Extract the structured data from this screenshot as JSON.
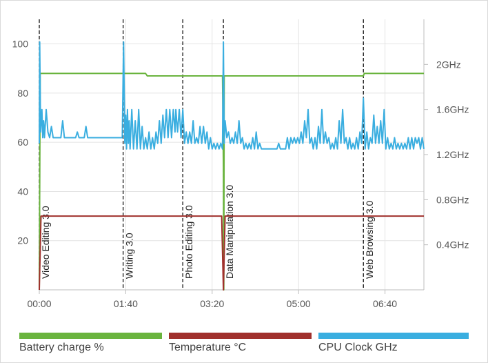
{
  "chart_data": {
    "type": "line",
    "title": "",
    "x_ticks": [
      "00:00",
      "01:40",
      "03:20",
      "05:00",
      "06:40"
    ],
    "x_range_minutes": [
      0,
      445
    ],
    "y_left_ticks": [
      20,
      40,
      60,
      80,
      100
    ],
    "y_left_range": [
      0,
      110
    ],
    "y_right_ticks": [
      "0.4GHz",
      "0.8GHz",
      "1.2GHz",
      "1.6GHz",
      "2GHz"
    ],
    "y_right_range_ghz": [
      0,
      2.4
    ],
    "grid": true,
    "legend_position": "bottom",
    "events": [
      {
        "time_min": 0,
        "label": "Video Editing 3.0"
      },
      {
        "time_min": 97,
        "label": "Writing 3.0"
      },
      {
        "time_min": 166,
        "label": "Photo Editing 3.0"
      },
      {
        "time_min": 213,
        "label": "Data Manipulation 3.0"
      },
      {
        "time_min": 375,
        "label": "Web Browsing 3.0"
      }
    ],
    "series": [
      {
        "name": "Battery charge %",
        "color": "#6ab43e",
        "axis": "left",
        "points": [
          [
            0,
            0
          ],
          [
            1,
            88
          ],
          [
            123,
            88
          ],
          [
            125,
            87
          ],
          [
            212,
            87
          ],
          [
            213,
            50
          ],
          [
            213.5,
            0
          ],
          [
            214,
            87
          ],
          [
            375,
            87
          ],
          [
            376,
            88
          ],
          [
            445,
            88
          ]
        ]
      },
      {
        "name": "Temperature °C",
        "color": "#a0302c",
        "axis": "left",
        "points": [
          [
            0,
            0
          ],
          [
            2,
            30
          ],
          [
            211,
            30
          ],
          [
            213,
            0
          ],
          [
            215,
            30
          ],
          [
            445,
            30
          ]
        ]
      },
      {
        "name": "CPU Clock GHz",
        "color": "#3aaee0",
        "axis": "right",
        "points": [
          [
            0,
            1.3
          ],
          [
            0.5,
            2.2
          ],
          [
            1.5,
            1.4
          ],
          [
            3,
            1.6
          ],
          [
            4,
            1.35
          ],
          [
            5,
            1.5
          ],
          [
            6,
            1.35
          ],
          [
            8,
            1.6
          ],
          [
            10,
            1.4
          ],
          [
            12,
            1.35
          ],
          [
            14,
            1.45
          ],
          [
            16,
            1.35
          ],
          [
            25,
            1.35
          ],
          [
            27,
            1.5
          ],
          [
            29,
            1.35
          ],
          [
            42,
            1.35
          ],
          [
            44,
            1.4
          ],
          [
            46,
            1.35
          ],
          [
            52,
            1.35
          ],
          [
            54,
            1.45
          ],
          [
            56,
            1.35
          ],
          [
            96,
            1.35
          ],
          [
            97.5,
            2.2
          ],
          [
            99,
            1.3
          ],
          [
            100,
            1.55
          ],
          [
            101,
            1.25
          ],
          [
            102,
            1.6
          ],
          [
            103,
            1.3
          ],
          [
            104,
            1.5
          ],
          [
            105,
            1.25
          ],
          [
            107,
            1.6
          ],
          [
            109,
            1.25
          ],
          [
            111,
            1.5
          ],
          [
            113,
            1.25
          ],
          [
            115,
            1.6
          ],
          [
            117,
            1.25
          ],
          [
            119,
            1.45
          ],
          [
            121,
            1.25
          ],
          [
            123,
            1.35
          ],
          [
            125,
            1.25
          ],
          [
            127,
            1.4
          ],
          [
            129,
            1.25
          ],
          [
            131,
            1.35
          ],
          [
            133,
            1.25
          ],
          [
            135,
            1.4
          ],
          [
            137,
            1.3
          ],
          [
            139,
            1.5
          ],
          [
            141,
            1.3
          ],
          [
            143,
            1.55
          ],
          [
            145,
            1.35
          ],
          [
            147,
            1.6
          ],
          [
            149,
            1.35
          ],
          [
            151,
            1.6
          ],
          [
            153,
            1.35
          ],
          [
            155,
            1.6
          ],
          [
            157,
            1.4
          ],
          [
            158,
            1.6
          ],
          [
            160,
            1.4
          ],
          [
            162,
            1.6
          ],
          [
            164,
            1.35
          ],
          [
            166,
            1.6
          ],
          [
            168,
            1.3
          ],
          [
            170,
            1.4
          ],
          [
            172,
            1.3
          ],
          [
            174,
            1.4
          ],
          [
            176,
            1.3
          ],
          [
            178,
            1.5
          ],
          [
            180,
            1.3
          ],
          [
            182,
            1.35
          ],
          [
            184,
            1.3
          ],
          [
            186,
            1.45
          ],
          [
            188,
            1.3
          ],
          [
            190,
            1.45
          ],
          [
            192,
            1.3
          ],
          [
            194,
            1.4
          ],
          [
            196,
            1.25
          ],
          [
            198,
            1.35
          ],
          [
            200,
            1.25
          ],
          [
            202,
            1.3
          ],
          [
            204,
            1.25
          ],
          [
            206,
            1.3
          ],
          [
            208,
            1.25
          ],
          [
            210,
            1.3
          ],
          [
            212,
            1.25
          ],
          [
            213,
            2.2
          ],
          [
            214,
            1.3
          ],
          [
            215,
            1.5
          ],
          [
            217,
            1.35
          ],
          [
            219,
            1.4
          ],
          [
            221,
            1.3
          ],
          [
            223,
            1.35
          ],
          [
            225,
            1.3
          ],
          [
            227,
            1.4
          ],
          [
            229,
            1.3
          ],
          [
            231,
            1.5
          ],
          [
            233,
            1.3
          ],
          [
            235,
            1.35
          ],
          [
            237,
            1.25
          ],
          [
            239,
            1.3
          ],
          [
            241,
            1.25
          ],
          [
            243,
            1.3
          ],
          [
            245,
            1.25
          ],
          [
            247,
            1.35
          ],
          [
            249,
            1.25
          ],
          [
            251,
            1.4
          ],
          [
            253,
            1.25
          ],
          [
            255,
            1.3
          ],
          [
            257,
            1.25
          ],
          [
            275,
            1.25
          ],
          [
            277,
            1.3
          ],
          [
            279,
            1.25
          ],
          [
            285,
            1.25
          ],
          [
            287,
            1.35
          ],
          [
            289,
            1.25
          ],
          [
            291,
            1.35
          ],
          [
            293,
            1.3
          ],
          [
            295,
            1.35
          ],
          [
            297,
            1.3
          ],
          [
            299,
            1.35
          ],
          [
            301,
            1.3
          ],
          [
            303,
            1.4
          ],
          [
            305,
            1.3
          ],
          [
            307,
            1.5
          ],
          [
            309,
            1.35
          ],
          [
            311,
            1.6
          ],
          [
            313,
            1.3
          ],
          [
            315,
            1.35
          ],
          [
            317,
            1.25
          ],
          [
            319,
            1.35
          ],
          [
            321,
            1.25
          ],
          [
            323,
            1.45
          ],
          [
            325,
            1.3
          ],
          [
            327,
            1.6
          ],
          [
            329,
            1.3
          ],
          [
            331,
            1.4
          ],
          [
            333,
            1.3
          ],
          [
            335,
            1.35
          ],
          [
            337,
            1.25
          ],
          [
            339,
            1.3
          ],
          [
            341,
            1.25
          ],
          [
            343,
            1.35
          ],
          [
            345,
            1.25
          ],
          [
            347,
            1.5
          ],
          [
            349,
            1.3
          ],
          [
            351,
            1.6
          ],
          [
            353,
            1.3
          ],
          [
            355,
            1.35
          ],
          [
            357,
            1.25
          ],
          [
            359,
            1.35
          ],
          [
            361,
            1.25
          ],
          [
            363,
            1.3
          ],
          [
            365,
            1.25
          ],
          [
            367,
            1.35
          ],
          [
            369,
            1.25
          ],
          [
            371,
            1.4
          ],
          [
            373,
            1.3
          ],
          [
            375,
            1.7
          ],
          [
            377,
            1.25
          ],
          [
            379,
            1.4
          ],
          [
            381,
            1.25
          ],
          [
            383,
            1.35
          ],
          [
            385,
            1.3
          ],
          [
            387,
            1.55
          ],
          [
            389,
            1.3
          ],
          [
            391,
            1.45
          ],
          [
            393,
            1.3
          ],
          [
            395,
            1.5
          ],
          [
            397,
            1.3
          ],
          [
            399,
            1.6
          ],
          [
            401,
            1.25
          ],
          [
            403,
            1.35
          ],
          [
            405,
            1.25
          ],
          [
            407,
            1.3
          ],
          [
            409,
            1.25
          ],
          [
            411,
            1.35
          ],
          [
            413,
            1.25
          ],
          [
            415,
            1.3
          ],
          [
            417,
            1.25
          ],
          [
            419,
            1.3
          ],
          [
            421,
            1.25
          ],
          [
            423,
            1.3
          ],
          [
            425,
            1.25
          ],
          [
            427,
            1.35
          ],
          [
            429,
            1.25
          ],
          [
            431,
            1.35
          ],
          [
            433,
            1.25
          ],
          [
            435,
            1.35
          ],
          [
            437,
            1.3
          ],
          [
            439,
            1.35
          ],
          [
            441,
            1.25
          ],
          [
            443,
            1.35
          ],
          [
            445,
            1.25
          ]
        ]
      }
    ]
  }
}
